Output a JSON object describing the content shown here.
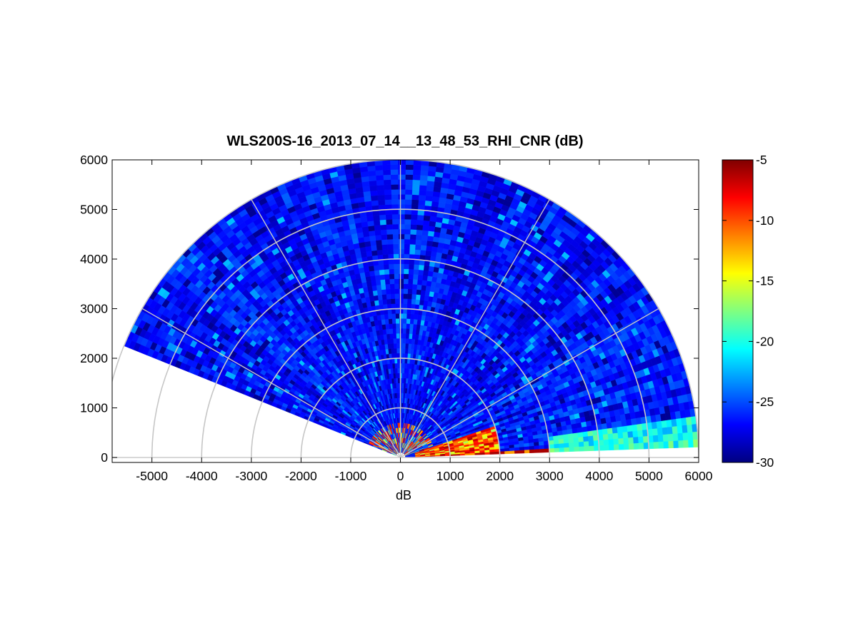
{
  "chart_data": {
    "type": "heatmap",
    "subtype": "polar RHI scan",
    "title": "WLS200S-16_2013_07_14__13_48_53_RHI_CNR (dB)",
    "xlabel": "dB",
    "ylabel": "",
    "xlim": [
      -5800,
      6000
    ],
    "ylim": [
      -100,
      6000
    ],
    "x_ticks": [
      "-5000",
      "-4000",
      "-3000",
      "-2000",
      "-1000",
      "0",
      "1000",
      "2000",
      "3000",
      "4000",
      "5000",
      "6000"
    ],
    "y_ticks": [
      "0",
      "1000",
      "2000",
      "3000",
      "4000",
      "5000",
      "6000"
    ],
    "polar_grid": {
      "range_rings_m": [
        1000,
        2000,
        3000,
        4000,
        5000,
        6000
      ],
      "spokes_deg": [
        0,
        30,
        60,
        90,
        120,
        150,
        180
      ]
    },
    "scan": {
      "elevation_start_deg": 2,
      "elevation_end_deg": 158,
      "max_range_m": 6000
    },
    "colorbar": {
      "colormap": "jet",
      "range": [
        -30,
        -5
      ],
      "ticks": [
        "-5",
        "-10",
        "-15",
        "-20",
        "-25",
        "-30"
      ]
    },
    "cnr_profile_dB": [
      {
        "elevation_deg": "2-4",
        "range_m": "0-3000",
        "value": -8
      },
      {
        "elevation_deg": "2-7",
        "range_m": "3000-6000",
        "value": -22
      },
      {
        "elevation_deg": "5-20",
        "range_m": "0-2000",
        "value": -7
      },
      {
        "elevation_deg": "20-160",
        "range_m": "0-1000",
        "value": -24
      },
      {
        "elevation_deg": "7-158",
        "range_m": "1000-6000",
        "value": -26.5
      }
    ],
    "grid": true
  },
  "colors": {
    "grid": "#c6c6c6",
    "axis": "#000000",
    "background": "#ffffff"
  }
}
